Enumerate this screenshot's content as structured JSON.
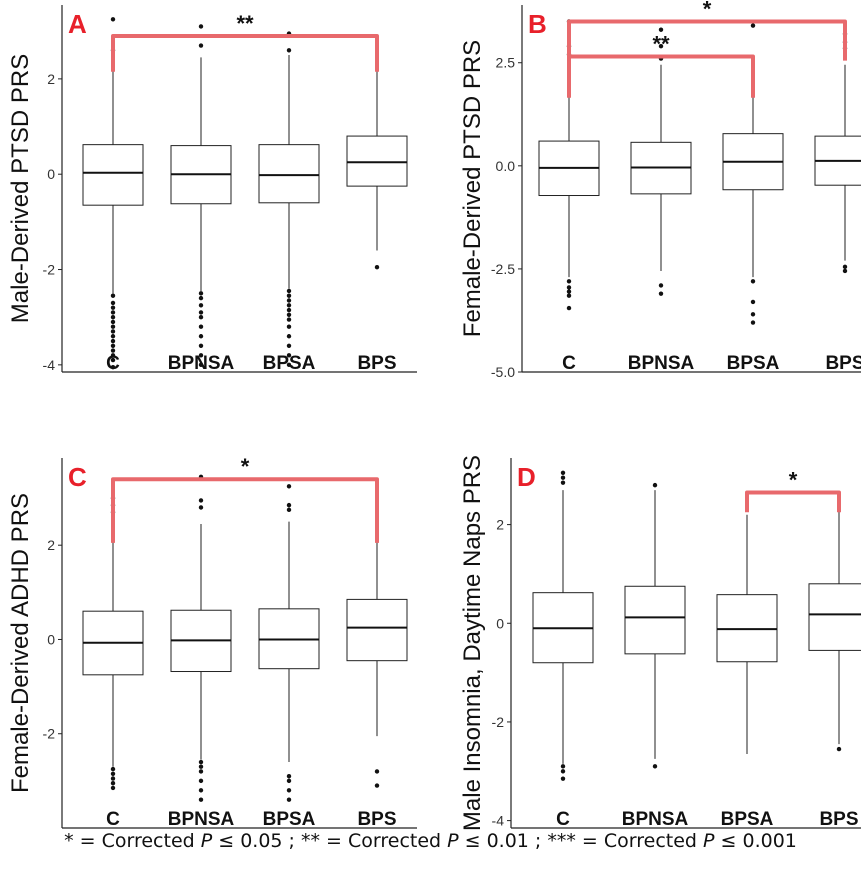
{
  "footnote": {
    "parts": [
      {
        "text": "* = Corrected ",
        "italic": false
      },
      {
        "text": "P",
        "italic": true
      },
      {
        "text": " ≤ 0.05 ; ** = Corrected ",
        "italic": false
      },
      {
        "text": "P",
        "italic": true
      },
      {
        "text": " ≤ 0.01 ; *** = Corrected ",
        "italic": false
      },
      {
        "text": "P",
        "italic": true
      },
      {
        "text": " ≤ 0.001",
        "italic": false
      }
    ]
  },
  "colors": {
    "bracket": "#e8696c",
    "panel_letter": "#e8202a",
    "box_stroke": "#222222",
    "axis": "#222222"
  },
  "chart_data": [
    {
      "type": "box",
      "panel_label": "A",
      "ylabel": "Male-Derived PTSD PRS",
      "categories": [
        "C",
        "BPNSA",
        "BPSA",
        "BPS"
      ],
      "ylim": [
        -4.15,
        3.55
      ],
      "yticks": [
        2,
        0,
        -2,
        -4
      ],
      "ytick_labels": [
        "2",
        "0",
        "-2",
        "-4"
      ],
      "boxes": [
        {
          "q1": -0.65,
          "median": 0.03,
          "q3": 0.62,
          "whisker_low": -2.5,
          "whisker_high": 2.6,
          "outliers": [
            3.25,
            2.6,
            -2.55,
            -2.7,
            -2.8,
            -2.9,
            -3.0,
            -3.1,
            -3.2,
            -3.3,
            -3.4,
            -3.5,
            -3.6,
            -3.7,
            -3.8,
            -3.9,
            -4.05
          ]
        },
        {
          "q1": -0.62,
          "median": 0.0,
          "q3": 0.6,
          "whisker_low": -2.45,
          "whisker_high": 2.45,
          "outliers": [
            3.1,
            2.7,
            -2.5,
            -2.6,
            -2.75,
            -2.9,
            -3.0,
            -3.2,
            -3.4,
            -3.6,
            -3.8,
            -4.0
          ]
        },
        {
          "q1": -0.6,
          "median": -0.02,
          "q3": 0.62,
          "whisker_low": -2.4,
          "whisker_high": 2.5,
          "outliers": [
            2.95,
            2.6,
            -2.45,
            -2.55,
            -2.65,
            -2.75,
            -2.85,
            -2.95,
            -3.05,
            -3.2,
            -3.4,
            -3.6,
            -3.8,
            -4.0
          ]
        },
        {
          "q1": -0.25,
          "median": 0.25,
          "q3": 0.8,
          "whisker_low": -1.6,
          "whisker_high": 2.3,
          "outliers": [
            -1.95
          ]
        }
      ],
      "brackets": [
        {
          "from": 0,
          "to": 3,
          "y": 2.9,
          "drop_to": 2.15,
          "label": "**"
        }
      ]
    },
    {
      "type": "box",
      "panel_label": "B",
      "ylabel": "Female-Derived PTSD PRS",
      "categories": [
        "C",
        "BPNSA",
        "BPSA",
        "BPS"
      ],
      "ylim": [
        -5.0,
        3.9
      ],
      "yticks": [
        2.5,
        0.0,
        -2.5,
        -5.0
      ],
      "ytick_labels": [
        "2.5",
        "0.0",
        "-2.5",
        "-5.0"
      ],
      "boxes": [
        {
          "q1": -0.72,
          "median": -0.05,
          "q3": 0.6,
          "whisker_low": -2.7,
          "whisker_high": 2.6,
          "outliers": [
            3.5,
            2.9,
            2.7,
            -2.8,
            -2.95,
            -3.05,
            -3.15,
            -3.45
          ]
        },
        {
          "q1": -0.68,
          "median": -0.04,
          "q3": 0.57,
          "whisker_low": -2.55,
          "whisker_high": 2.45,
          "outliers": [
            3.3,
            2.9,
            2.6,
            -2.9,
            -3.1
          ]
        },
        {
          "q1": -0.58,
          "median": 0.1,
          "q3": 0.78,
          "whisker_low": -2.7,
          "whisker_high": 2.65,
          "outliers": [
            3.4,
            -2.8,
            -3.3,
            -3.6,
            -3.8
          ]
        },
        {
          "q1": -0.47,
          "median": 0.12,
          "q3": 0.72,
          "whisker_low": -2.3,
          "whisker_high": 2.45,
          "outliers": [
            3.2,
            3.0,
            2.85,
            -2.45,
            -2.55
          ]
        }
      ],
      "brackets": [
        {
          "from": 0,
          "to": 2,
          "y": 2.65,
          "drop_to": 1.65,
          "label": "**"
        },
        {
          "from": 0,
          "to": 3,
          "y": 3.5,
          "drop_to": 2.55,
          "label": "*"
        }
      ]
    },
    {
      "type": "box",
      "panel_label": "C",
      "ylabel": "Female-Derived ADHD PRS",
      "categories": [
        "C",
        "BPNSA",
        "BPSA",
        "BPS"
      ],
      "ylim": [
        -4.0,
        3.85
      ],
      "yticks": [
        2,
        0,
        -2
      ],
      "ytick_labels": [
        "2",
        "0",
        "-2"
      ],
      "boxes": [
        {
          "q1": -0.75,
          "median": -0.07,
          "q3": 0.6,
          "whisker_low": -2.7,
          "whisker_high": 2.55,
          "outliers": [
            3.0,
            2.85,
            2.7,
            -2.75,
            -2.85,
            -2.95,
            -3.05,
            -3.15
          ]
        },
        {
          "q1": -0.68,
          "median": -0.02,
          "q3": 0.62,
          "whisker_low": -2.55,
          "whisker_high": 2.45,
          "outliers": [
            3.45,
            2.95,
            2.8,
            -2.6,
            -2.7,
            -2.8,
            -3.0,
            -3.2,
            -3.4
          ]
        },
        {
          "q1": -0.62,
          "median": 0.0,
          "q3": 0.65,
          "whisker_low": -2.6,
          "whisker_high": 2.5,
          "outliers": [
            3.25,
            2.85,
            2.75,
            -2.9,
            -3.0,
            -3.2,
            -3.4
          ]
        },
        {
          "q1": -0.45,
          "median": 0.25,
          "q3": 0.85,
          "whisker_low": -2.05,
          "whisker_high": 2.1,
          "outliers": [
            -2.8,
            -3.1
          ]
        }
      ],
      "brackets": [
        {
          "from": 0,
          "to": 3,
          "y": 3.4,
          "drop_to": 2.05,
          "label": "*"
        }
      ]
    },
    {
      "type": "box",
      "panel_label": "D",
      "ylabel": "Male Insomnia, Daytime Naps PRS",
      "categories": [
        "C",
        "BPNSA",
        "BPSA",
        "BPS"
      ],
      "ylim": [
        -4.15,
        3.35
      ],
      "yticks": [
        2,
        0,
        -2,
        -4
      ],
      "ytick_labels": [
        "2",
        "0",
        "-2",
        "-4"
      ],
      "boxes": [
        {
          "q1": -0.8,
          "median": -0.1,
          "q3": 0.62,
          "whisker_low": -2.85,
          "whisker_high": 2.7,
          "outliers": [
            3.05,
            2.95,
            2.85,
            -2.9,
            -3.0,
            -3.15
          ]
        },
        {
          "q1": -0.62,
          "median": 0.12,
          "q3": 0.75,
          "whisker_low": -2.75,
          "whisker_high": 2.7,
          "outliers": [
            2.8,
            -2.9
          ]
        },
        {
          "q1": -0.78,
          "median": -0.12,
          "q3": 0.58,
          "whisker_low": -2.65,
          "whisker_high": 2.2,
          "outliers": []
        },
        {
          "q1": -0.55,
          "median": 0.18,
          "q3": 0.8,
          "whisker_low": -2.45,
          "whisker_high": 2.3,
          "outliers": [
            -2.55
          ]
        }
      ],
      "brackets": [
        {
          "from": 2,
          "to": 3,
          "y": 2.65,
          "drop_to": 2.25,
          "label": "*"
        }
      ]
    }
  ]
}
